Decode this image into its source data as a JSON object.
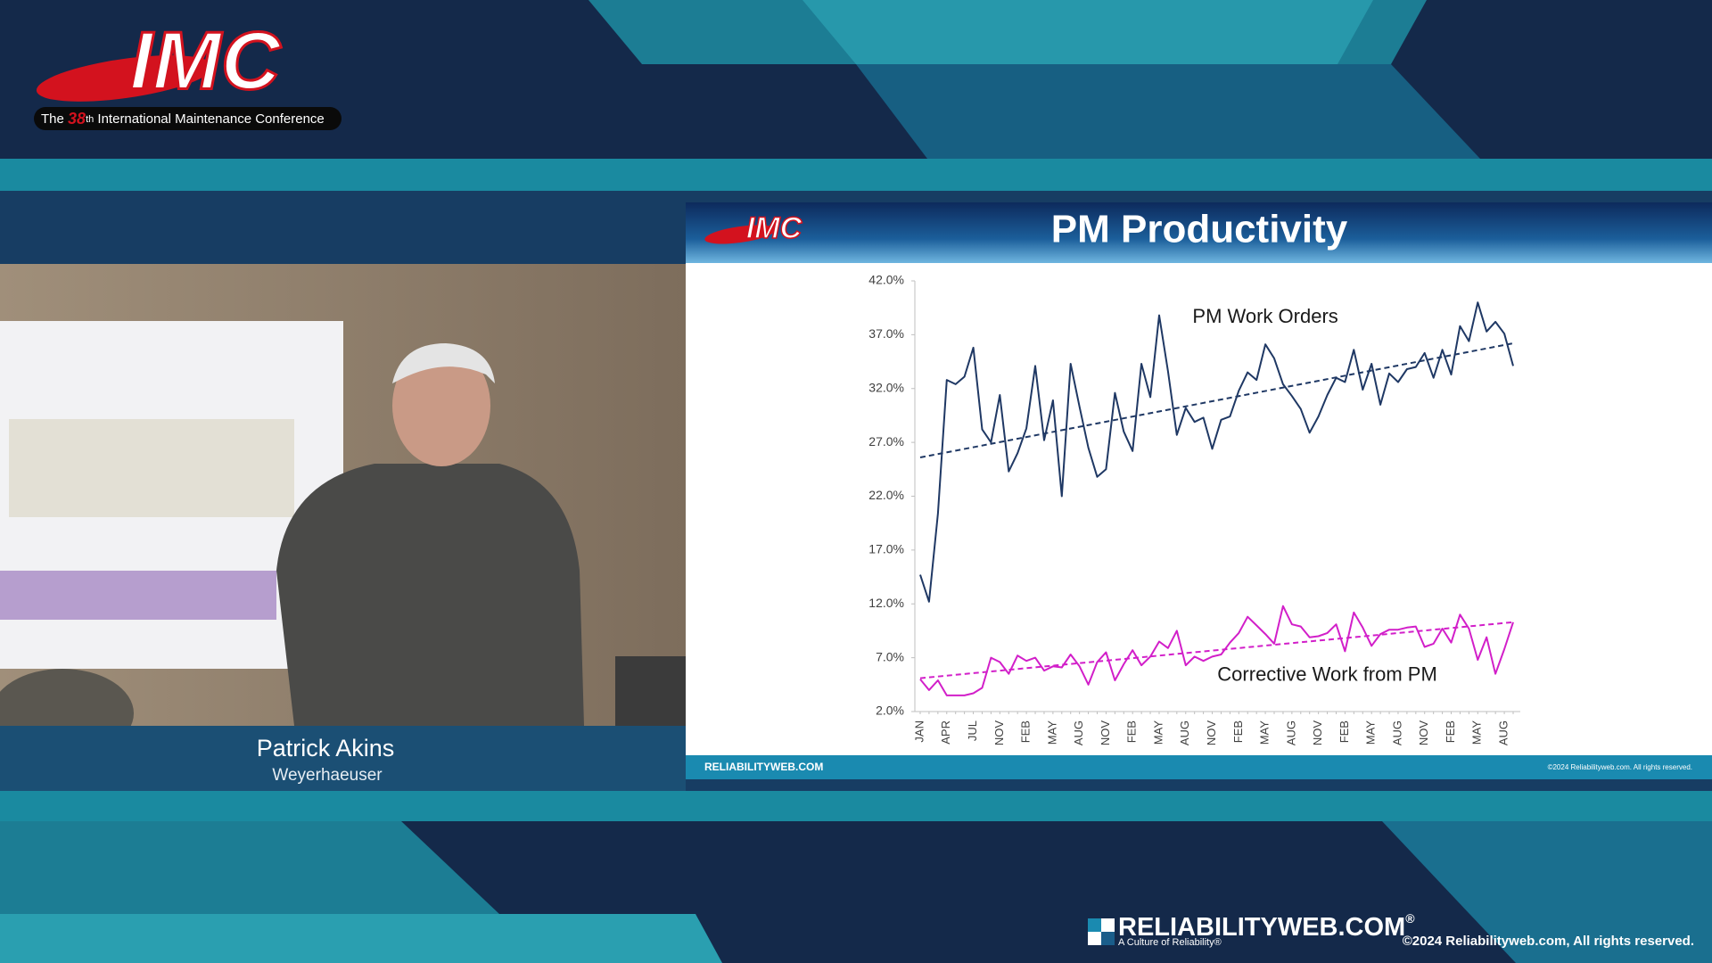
{
  "header": {
    "logo": "IMC",
    "tagline_prefix": "The",
    "edition": "38",
    "edition_suffix": "th",
    "tagline": "International Maintenance Conference"
  },
  "speaker": {
    "name": "Patrick Akins",
    "company": "Weyerhaeuser"
  },
  "slide": {
    "logo": "IMC",
    "footer_brand": "RELIABILITYWEB.COM",
    "footer_copyright": "©2024 Reliabilityweb.com. All rights reserved."
  },
  "chart_data": {
    "type": "line",
    "title": "PM Productivity",
    "categories": [
      "JAN",
      null,
      null,
      "APR",
      null,
      null,
      "JUL",
      null,
      null,
      "NOV",
      null,
      null,
      "FEB",
      null,
      null,
      "MAY",
      null,
      null,
      "AUG",
      null,
      null,
      "NOV",
      null,
      null,
      "FEB",
      null,
      null,
      "MAY",
      null,
      null,
      "AUG",
      null,
      null,
      "NOV",
      null,
      null,
      "FEB",
      null,
      null,
      "MAY",
      null,
      null,
      "AUG",
      null,
      null,
      "NOV",
      null,
      null,
      "FEB",
      null,
      null,
      "MAY",
      null,
      null,
      "AUG",
      null,
      null,
      "NOV",
      null,
      null,
      "FEB",
      null,
      null,
      "MAY",
      null,
      null,
      "AUG",
      null
    ],
    "series": [
      {
        "name": "PM Work Orders",
        "color": "#1f3864",
        "trend": [
          25.6,
          36.2
        ],
        "values": [
          14.7,
          12.2,
          20.4,
          32.8,
          32.4,
          33.1,
          35.8,
          28.2,
          27.0,
          31.4,
          24.3,
          26.0,
          28.3,
          34.1,
          27.2,
          30.9,
          22.0,
          34.3,
          30.3,
          26.5,
          23.8,
          24.5,
          31.6,
          28.0,
          26.2,
          34.3,
          31.2,
          38.8,
          33.6,
          27.7,
          30.2,
          28.9,
          29.3,
          26.4,
          29.1,
          29.4,
          31.8,
          33.5,
          32.8,
          36.1,
          34.8,
          32.4,
          31.3,
          30.1,
          27.9,
          29.4,
          31.4,
          33.0,
          32.6,
          35.6,
          31.9,
          34.3,
          30.5,
          33.4,
          32.6,
          33.8,
          34.0,
          35.3,
          33.0,
          35.6,
          33.3,
          37.8,
          36.4,
          40.0,
          37.3,
          38.2,
          37.1,
          34.1
        ]
      },
      {
        "name": "Corrective Work from PM",
        "color": "#d21fc9",
        "trend": [
          5.1,
          10.3
        ],
        "values": [
          5.0,
          4.0,
          4.9,
          3.5,
          3.5,
          3.5,
          3.7,
          4.2,
          7.0,
          6.6,
          5.5,
          7.2,
          6.7,
          7.0,
          5.8,
          6.2,
          6.1,
          7.3,
          6.2,
          4.5,
          6.6,
          7.5,
          4.9,
          6.4,
          7.7,
          6.3,
          7.1,
          8.5,
          7.9,
          9.5,
          6.3,
          7.1,
          6.7,
          7.1,
          7.3,
          8.4,
          9.3,
          10.8,
          10.0,
          9.2,
          8.3,
          11.8,
          10.1,
          9.9,
          8.9,
          9.0,
          9.3,
          10.1,
          7.6,
          11.2,
          9.8,
          8.1,
          9.2,
          9.6,
          9.6,
          9.8,
          9.9,
          8.0,
          8.3,
          9.7,
          8.4,
          11.0,
          9.7,
          6.8,
          8.9,
          5.5,
          7.8,
          10.3
        ]
      }
    ],
    "ylim": [
      2,
      42
    ],
    "yticks": [
      {
        "value": 2,
        "label": "2.0%"
      },
      {
        "value": 7,
        "label": "7.0%"
      },
      {
        "value": 12,
        "label": "12.0%"
      },
      {
        "value": 17,
        "label": "17.0%"
      },
      {
        "value": 22,
        "label": "22.0%"
      },
      {
        "value": 27,
        "label": "27.0%"
      },
      {
        "value": 32,
        "label": "32.0%"
      },
      {
        "value": 37,
        "label": "37.0%"
      },
      {
        "value": 42,
        "label": "42.0%"
      }
    ],
    "grid": false
  },
  "footer": {
    "brand": "RELIABILITYWEB.COM",
    "reg": "®",
    "motto": "A Culture of Reliability®",
    "copyright": "©2024 Reliabilityweb.com, All rights reserved."
  }
}
